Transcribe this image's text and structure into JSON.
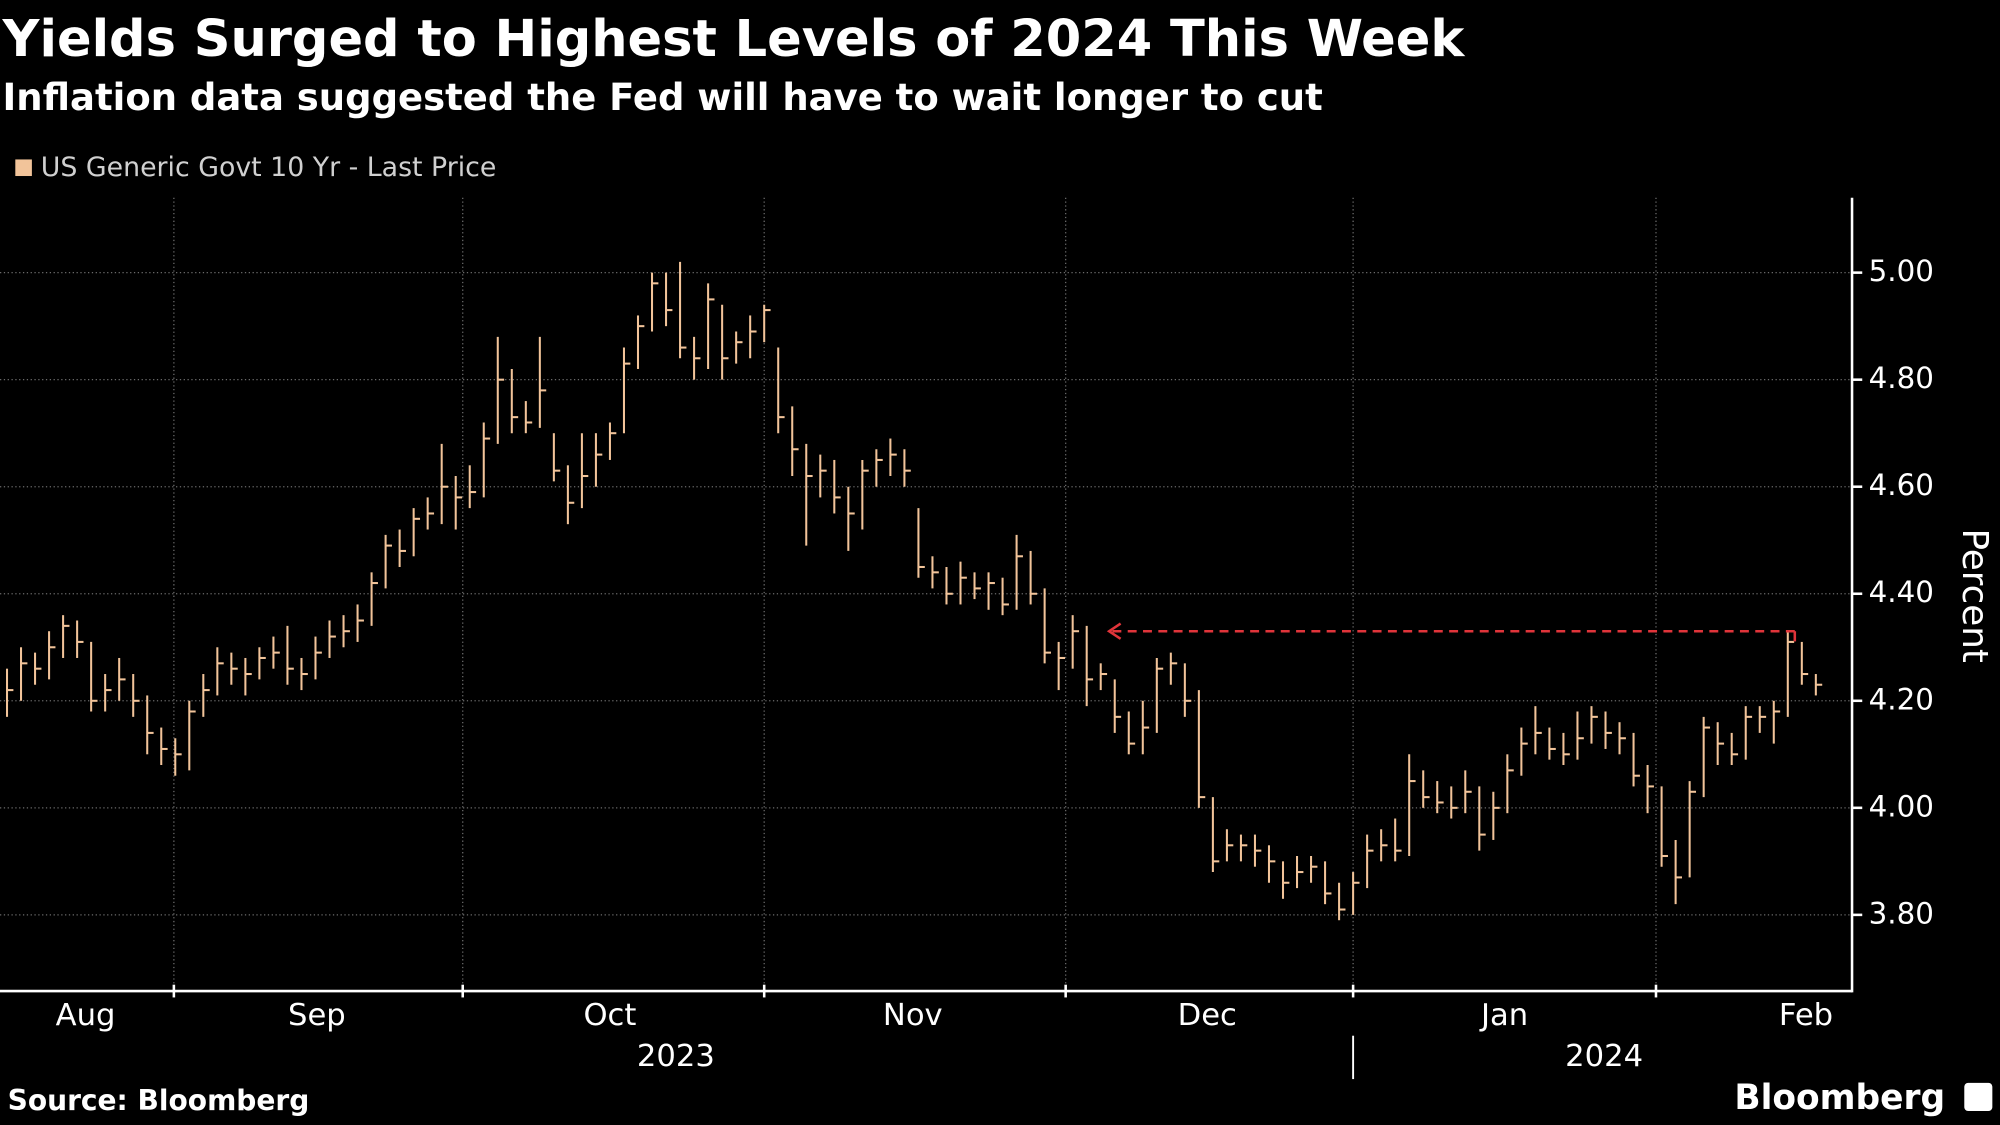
{
  "chart_data": {
    "type": "ohlc",
    "title": "Yields Surged to Highest Levels of 2024 This Week",
    "subtitle": "Inflation data suggested the Fed will have to wait longer to cut",
    "y_label": "Percent",
    "source": "Source: Bloomberg",
    "brand": "Bloomberg",
    "series": [
      {
        "name": "US Generic Govt 10 Yr - Last Price",
        "color": "#f2c49a",
        "close": [
          4.22,
          4.27,
          4.26,
          4.3,
          4.34,
          4.31,
          4.2,
          4.22,
          4.24,
          4.2,
          4.14,
          4.11,
          4.1,
          4.18,
          4.22,
          4.27,
          4.26,
          4.25,
          4.28,
          4.29,
          4.26,
          4.25,
          4.29,
          4.32,
          4.33,
          4.35,
          4.42,
          4.49,
          4.48,
          4.54,
          4.55,
          4.6,
          4.58,
          4.59,
          4.69,
          4.8,
          4.73,
          4.72,
          4.78,
          4.63,
          4.57,
          4.62,
          4.66,
          4.7,
          4.83,
          4.9,
          4.98,
          4.93,
          4.86,
          4.84,
          4.95,
          4.84,
          4.87,
          4.89,
          4.93,
          4.73,
          4.67,
          4.62,
          4.63,
          4.58,
          4.55,
          4.63,
          4.65,
          4.66,
          4.63,
          4.45,
          4.44,
          4.4,
          4.43,
          4.41,
          4.42,
          4.38,
          4.47,
          4.4,
          4.29,
          4.28,
          4.33,
          4.24,
          4.25,
          4.17,
          4.12,
          4.15,
          4.26,
          4.27,
          4.2,
          4.02,
          3.9,
          3.93,
          3.93,
          3.92,
          3.9,
          3.86,
          3.88,
          3.89,
          3.84,
          3.81,
          3.86,
          3.92,
          3.93,
          3.92,
          4.05,
          4.02,
          4.01,
          4.0,
          4.03,
          3.95,
          4.0,
          4.07,
          4.12,
          4.14,
          4.11,
          4.1,
          4.13,
          4.17,
          4.14,
          4.13,
          4.06,
          4.04,
          3.91,
          3.87,
          4.03,
          4.15,
          4.12,
          4.1,
          4.17,
          4.17,
          4.18,
          4.31,
          4.25,
          4.23
        ],
        "high": [
          4.26,
          4.3,
          4.29,
          4.33,
          4.36,
          4.35,
          4.31,
          4.25,
          4.28,
          4.25,
          4.21,
          4.15,
          4.13,
          4.2,
          4.25,
          4.3,
          4.29,
          4.28,
          4.3,
          4.32,
          4.34,
          4.28,
          4.32,
          4.35,
          4.36,
          4.38,
          4.44,
          4.51,
          4.52,
          4.56,
          4.58,
          4.68,
          4.62,
          4.64,
          4.72,
          4.88,
          4.82,
          4.76,
          4.88,
          4.7,
          4.64,
          4.7,
          4.7,
          4.72,
          4.86,
          4.92,
          5.0,
          5.0,
          5.02,
          4.88,
          4.98,
          4.94,
          4.89,
          4.92,
          4.94,
          4.86,
          4.75,
          4.68,
          4.66,
          4.65,
          4.6,
          4.65,
          4.67,
          4.69,
          4.67,
          4.56,
          4.47,
          4.45,
          4.46,
          4.44,
          4.44,
          4.43,
          4.51,
          4.48,
          4.41,
          4.31,
          4.36,
          4.34,
          4.27,
          4.24,
          4.18,
          4.2,
          4.28,
          4.29,
          4.27,
          4.22,
          4.02,
          3.96,
          3.95,
          3.95,
          3.93,
          3.9,
          3.91,
          3.91,
          3.9,
          3.86,
          3.88,
          3.95,
          3.96,
          3.98,
          4.1,
          4.07,
          4.05,
          4.04,
          4.07,
          4.04,
          4.03,
          4.1,
          4.15,
          4.19,
          4.15,
          4.14,
          4.18,
          4.19,
          4.18,
          4.16,
          4.14,
          4.08,
          4.04,
          3.94,
          4.05,
          4.17,
          4.16,
          4.14,
          4.19,
          4.19,
          4.2,
          4.33,
          4.31,
          4.25
        ],
        "low": [
          4.17,
          4.2,
          4.23,
          4.24,
          4.28,
          4.28,
          4.18,
          4.18,
          4.2,
          4.17,
          4.1,
          4.08,
          4.06,
          4.07,
          4.17,
          4.21,
          4.23,
          4.21,
          4.24,
          4.26,
          4.23,
          4.22,
          4.24,
          4.28,
          4.3,
          4.31,
          4.34,
          4.41,
          4.45,
          4.47,
          4.52,
          4.53,
          4.52,
          4.56,
          4.58,
          4.68,
          4.7,
          4.7,
          4.71,
          4.61,
          4.53,
          4.56,
          4.6,
          4.65,
          4.7,
          4.82,
          4.89,
          4.9,
          4.84,
          4.8,
          4.82,
          4.8,
          4.83,
          4.84,
          4.87,
          4.7,
          4.62,
          4.49,
          4.58,
          4.55,
          4.48,
          4.52,
          4.6,
          4.62,
          4.6,
          4.43,
          4.41,
          4.38,
          4.38,
          4.39,
          4.37,
          4.36,
          4.37,
          4.38,
          4.27,
          4.22,
          4.26,
          4.19,
          4.22,
          4.14,
          4.1,
          4.1,
          4.14,
          4.23,
          4.17,
          4.0,
          3.88,
          3.9,
          3.9,
          3.89,
          3.86,
          3.83,
          3.85,
          3.86,
          3.82,
          3.79,
          3.8,
          3.85,
          3.9,
          3.9,
          3.91,
          4.0,
          3.99,
          3.98,
          3.99,
          3.92,
          3.94,
          3.99,
          4.06,
          4.1,
          4.09,
          4.08,
          4.09,
          4.12,
          4.11,
          4.1,
          4.04,
          3.99,
          3.89,
          3.82,
          3.87,
          4.02,
          4.08,
          4.08,
          4.09,
          4.14,
          4.12,
          4.17,
          4.23,
          4.21
        ]
      }
    ],
    "xlim": [
      -0.5,
      131.4
    ],
    "xticks": [
      {
        "value": 5.6,
        "label": "Aug"
      },
      {
        "value": 22.1,
        "label": "Sep"
      },
      {
        "value": 43,
        "label": "Oct"
      },
      {
        "value": 64.6,
        "label": "Nov"
      },
      {
        "value": 85.6,
        "label": "Dec"
      },
      {
        "value": 106.8,
        "label": "Jan"
      },
      {
        "value": 128.3,
        "label": "Feb"
      }
    ],
    "xgrid": [
      11.9,
      32.5,
      54,
      75.5,
      96,
      117.6
    ],
    "year_labels": [
      {
        "value": 47.7,
        "label": "2023"
      },
      {
        "value": 113.9,
        "label": "2024"
      }
    ],
    "year_divider": 96,
    "ylim": [
      3.66,
      5.14
    ],
    "yticks": [
      {
        "value": 3.8,
        "label": "3.80"
      },
      {
        "value": 4,
        "label": "4.00"
      },
      {
        "value": 4.2,
        "label": "4.20"
      },
      {
        "value": 4.4,
        "label": "4.40"
      },
      {
        "value": 4.6,
        "label": "4.60"
      },
      {
        "value": 4.8,
        "label": "4.80"
      },
      {
        "value": 5,
        "label": "5.00"
      }
    ],
    "grid": true,
    "annotation_line": {
      "y": 4.33,
      "x": [
        127.5,
        78.6
      ],
      "color": "#e0343a"
    }
  }
}
